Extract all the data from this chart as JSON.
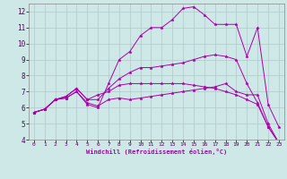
{
  "title": "",
  "xlabel": "Windchill (Refroidissement éolien,°C)",
  "ylabel": "",
  "xlim": [
    -0.5,
    23.5
  ],
  "ylim": [
    4,
    12.5
  ],
  "yticks": [
    4,
    5,
    6,
    7,
    8,
    9,
    10,
    11,
    12
  ],
  "xticks": [
    0,
    1,
    2,
    3,
    4,
    5,
    6,
    7,
    8,
    9,
    10,
    11,
    12,
    13,
    14,
    15,
    16,
    17,
    18,
    19,
    20,
    21,
    22,
    23
  ],
  "bg_color": "#cee8e8",
  "grid_color": "#b0c8c8",
  "line_color": "#aa00aa",
  "series": [
    {
      "x": [
        0,
        1,
        2,
        3,
        4,
        5,
        6,
        7,
        8,
        9,
        10,
        11,
        12,
        13,
        14,
        15,
        16,
        17,
        18,
        19,
        20,
        21,
        22,
        23
      ],
      "y": [
        5.7,
        5.9,
        6.5,
        6.6,
        7.0,
        6.2,
        6.0,
        7.5,
        9.0,
        9.5,
        10.5,
        11.0,
        11.0,
        11.5,
        12.2,
        12.3,
        11.8,
        11.2,
        11.2,
        11.2,
        9.2,
        11.0,
        6.2,
        4.8
      ]
    },
    {
      "x": [
        0,
        1,
        2,
        3,
        4,
        5,
        6,
        7,
        8,
        9,
        10,
        11,
        12,
        13,
        14,
        15,
        16,
        17,
        18,
        19,
        20,
        21,
        22,
        23
      ],
      "y": [
        5.7,
        5.9,
        6.5,
        6.7,
        7.2,
        6.5,
        6.5,
        7.2,
        7.8,
        8.2,
        8.5,
        8.5,
        8.6,
        8.7,
        8.8,
        9.0,
        9.2,
        9.3,
        9.2,
        9.0,
        7.5,
        6.3,
        4.8,
        3.8
      ]
    },
    {
      "x": [
        0,
        1,
        2,
        3,
        4,
        5,
        6,
        7,
        8,
        9,
        10,
        11,
        12,
        13,
        14,
        15,
        16,
        17,
        18,
        19,
        20,
        21,
        22,
        23
      ],
      "y": [
        5.7,
        5.9,
        6.5,
        6.6,
        7.0,
        6.3,
        6.1,
        6.5,
        6.6,
        6.5,
        6.6,
        6.7,
        6.8,
        6.9,
        7.0,
        7.1,
        7.2,
        7.3,
        7.5,
        7.0,
        6.8,
        6.8,
        5.0,
        3.8
      ]
    },
    {
      "x": [
        0,
        1,
        2,
        3,
        4,
        5,
        6,
        7,
        8,
        9,
        10,
        11,
        12,
        13,
        14,
        15,
        16,
        17,
        18,
        19,
        20,
        21,
        22,
        23
      ],
      "y": [
        5.7,
        5.9,
        6.5,
        6.7,
        7.2,
        6.5,
        6.8,
        7.0,
        7.4,
        7.5,
        7.5,
        7.5,
        7.5,
        7.5,
        7.5,
        7.4,
        7.3,
        7.2,
        7.0,
        6.8,
        6.5,
        6.2,
        4.8,
        3.8
      ]
    }
  ]
}
